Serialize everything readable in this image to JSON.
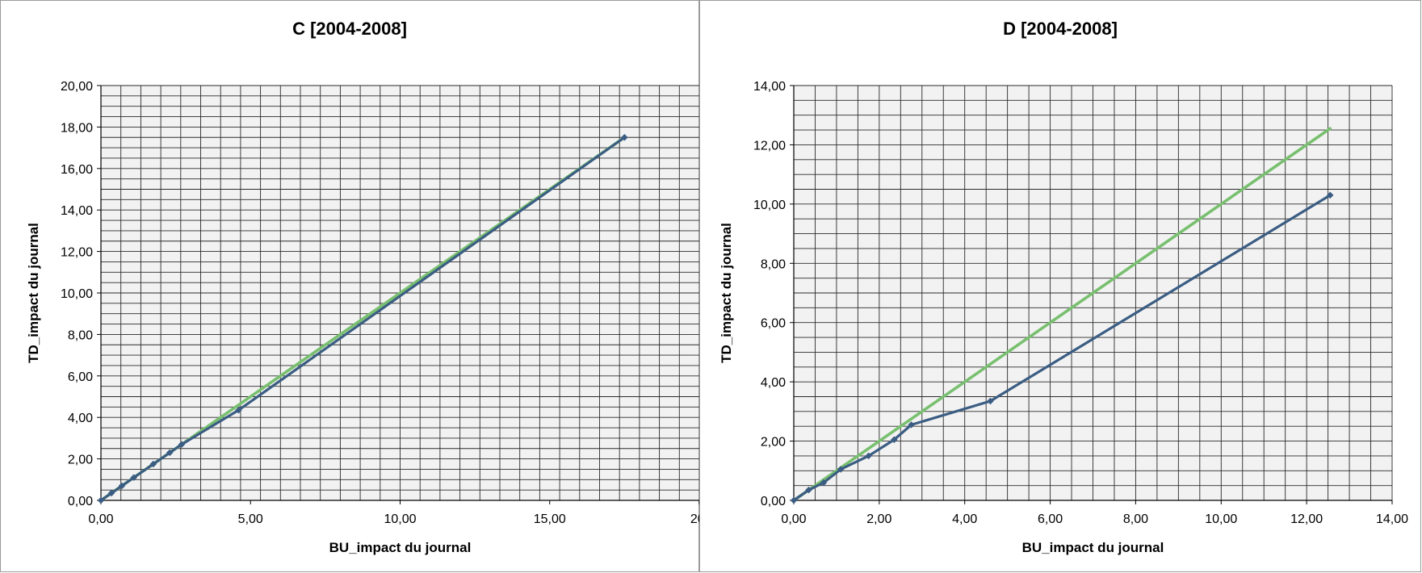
{
  "colors": {
    "plot_background": "#f2f2f2",
    "gridline": "#2a2a2a",
    "series_blue": "#3b5d83",
    "series_green": "#78c06f"
  },
  "chart_data": [
    {
      "type": "line",
      "title": "C [2004-2008]",
      "xlabel": "BU_impact du journal",
      "ylabel": "TD_impact du journal",
      "xlim": [
        0,
        20
      ],
      "ylim": [
        0,
        20
      ],
      "grid": true,
      "x_tick_labels": [
        "0,00",
        "5,00",
        "10,00",
        "15,00",
        "20,"
      ],
      "y_tick_labels": [
        "0,00",
        "2,00",
        "4,00",
        "6,00",
        "8,00",
        "10,00",
        "12,00",
        "14,00",
        "16,00",
        "18,00",
        "20,00"
      ],
      "series": [
        {
          "color": "#3b5d83",
          "markers": true,
          "x": [
            0,
            0.35,
            0.7,
            1.1,
            1.75,
            2.3,
            2.7,
            4.6,
            17.5
          ],
          "y": [
            0,
            0.35,
            0.7,
            1.1,
            1.75,
            2.3,
            2.7,
            4.35,
            17.5
          ]
        },
        {
          "color": "#78c06f",
          "markers": false,
          "x": [
            0,
            17.5
          ],
          "y": [
            0,
            17.5
          ]
        }
      ]
    },
    {
      "type": "line",
      "title": "D [2004-2008]",
      "xlabel": "BU_impact du journal",
      "ylabel": "TD_impact du journal",
      "xlim": [
        0,
        14
      ],
      "ylim": [
        0,
        14
      ],
      "grid": true,
      "x_tick_labels": [
        "0,00",
        "2,00",
        "4,00",
        "6,00",
        "8,00",
        "10,00",
        "12,00",
        "14,00"
      ],
      "y_tick_labels": [
        "0,00",
        "2,00",
        "4,00",
        "6,00",
        "8,00",
        "10,00",
        "12,00",
        "14,00"
      ],
      "series": [
        {
          "color": "#3b5d83",
          "markers": true,
          "x": [
            0,
            0.35,
            0.7,
            1.1,
            1.75,
            2.35,
            2.75,
            4.6,
            12.55
          ],
          "y": [
            0,
            0.35,
            0.6,
            1.05,
            1.5,
            2.05,
            2.55,
            3.35,
            10.3
          ]
        },
        {
          "color": "#78c06f",
          "markers": false,
          "x": [
            0,
            12.55
          ],
          "y": [
            0,
            12.55
          ]
        }
      ]
    }
  ]
}
